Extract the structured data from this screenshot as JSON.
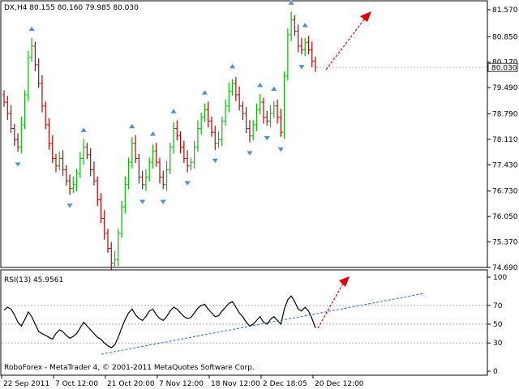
{
  "main_header": "DX,H4  80.155 80.160 79.985 80.030",
  "rsi_header": "RSI(13) 45.9561",
  "footer_text": "RoboForex - MetaTrader 4, © 2001-2011 MetaQuotes Software Corp.",
  "current_price_label": "80.030",
  "colors": {
    "up_bar": "#00c000",
    "down_bar": "#c00000",
    "fractal": "#4a90e2",
    "rsi_line": "#000000",
    "trend_line": "#1e6fd0",
    "forecast_arrow": "#e00000"
  },
  "icons": {
    "fractal": "fractal-arrow-icon",
    "forecast": "forecast-arrow-icon"
  },
  "chart_data": [
    {
      "type": "candlestick",
      "title": "DX,H4  80.155 80.160 79.985 80.030",
      "ylim": [
        74.69,
        81.57
      ],
      "y_ticks": [
        "81.570",
        "80.850",
        "80.170",
        "79.490",
        "78.790",
        "78.110",
        "77.430",
        "76.730",
        "76.050",
        "75.370",
        "74.690"
      ],
      "last_price": 80.03,
      "closes_approx": [
        79.1,
        78.8,
        78.4,
        78.1,
        77.9,
        78.5,
        79.3,
        80.3,
        80.6,
        80.1,
        79.6,
        79.0,
        78.5,
        78.0,
        77.6,
        77.4,
        77.6,
        77.3,
        77.0,
        76.8,
        76.9,
        77.2,
        77.6,
        77.9,
        77.7,
        77.3,
        77.0,
        76.5,
        76.0,
        75.6,
        75.2,
        74.8,
        74.9,
        75.6,
        76.3,
        76.9,
        77.5,
        78.0,
        77.6,
        77.1,
        76.9,
        77.1,
        77.5,
        77.8,
        77.5,
        77.1,
        76.9,
        77.3,
        77.9,
        78.4,
        78.2,
        77.9,
        77.6,
        77.4,
        77.5,
        77.9,
        78.4,
        78.7,
        78.9,
        78.6,
        78.3,
        78.0,
        78.1,
        78.6,
        79.0,
        79.4,
        79.6,
        79.3,
        79.0,
        78.8,
        78.4,
        78.2,
        78.5,
        78.9,
        79.1,
        78.7,
        78.6,
        78.8,
        79.0,
        78.7,
        78.3,
        79.8,
        80.9,
        81.3,
        81.0,
        80.6,
        80.5,
        80.7,
        80.5,
        80.2,
        80.03
      ]
    },
    {
      "type": "line",
      "title": "RSI(13) 45.9561",
      "series": [
        {
          "name": "RSI(13)",
          "values": [
            65,
            68,
            66,
            60,
            52,
            48,
            55,
            63,
            58,
            50,
            42,
            40,
            38,
            36,
            34,
            40,
            44,
            42,
            38,
            35,
            37,
            40,
            46,
            52,
            48,
            44,
            40,
            36,
            34,
            30,
            27,
            25,
            28,
            36,
            46,
            55,
            62,
            66,
            60,
            56,
            54,
            58,
            64,
            66,
            60,
            56,
            54,
            58,
            64,
            68,
            66,
            62,
            58,
            56,
            57,
            62,
            67,
            70,
            71,
            66,
            62,
            58,
            59,
            64,
            68,
            72,
            74,
            68,
            62,
            58,
            52,
            48,
            50,
            54,
            58,
            52,
            50,
            55,
            58,
            54,
            50,
            66,
            76,
            80,
            74,
            66,
            64,
            68,
            64,
            56,
            45.96
          ]
        }
      ],
      "ylim": [
        0,
        100
      ],
      "y_ticks": [
        "100",
        "70",
        "50",
        "30",
        "0"
      ],
      "levels": [
        70,
        50,
        30
      ],
      "x_tick_labels": [
        "22 Sep 2011",
        "7 Oct 12:00",
        "21 Oct 20:00",
        "7 Nov 12:00",
        "18 Nov 12:00",
        "2 Dec 18:05",
        "20 Dec 12:00"
      ]
    }
  ]
}
